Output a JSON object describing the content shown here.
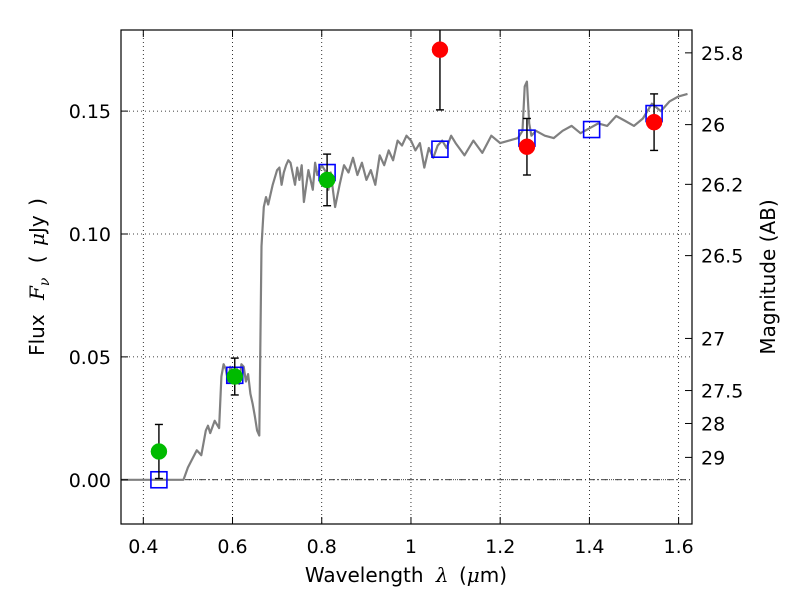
{
  "chart_data": {
    "type": "scatter",
    "xlabel": {
      "text": "Wavelength",
      "symbol": "λ",
      "unit_open": "(",
      "unit_mu": "μ",
      "unit_rest": "m)"
    },
    "ylabel": {
      "text": "Flux",
      "symbol": "F",
      "subscript": "ν",
      "unit_open": "(",
      "unit_mu": "μ",
      "unit_rest": "Jy",
      "unit_close": ")"
    },
    "y2label": "Magnitude (AB)",
    "xlim": [
      0.35,
      1.63
    ],
    "ylim": [
      -0.018,
      0.183
    ],
    "xticks": [
      {
        "value": 0.4,
        "label": "0.4"
      },
      {
        "value": 0.6,
        "label": "0.6"
      },
      {
        "value": 0.8,
        "label": "0.8"
      },
      {
        "value": 1.0,
        "label": "1"
      },
      {
        "value": 1.2,
        "label": "1.2"
      },
      {
        "value": 1.4,
        "label": "1.4"
      },
      {
        "value": 1.6,
        "label": "1.6"
      }
    ],
    "yticks": [
      {
        "value": 0.0,
        "label": "0.00"
      },
      {
        "value": 0.05,
        "label": "0.05"
      },
      {
        "value": 0.1,
        "label": "0.10"
      },
      {
        "value": 0.15,
        "label": "0.15"
      }
    ],
    "y2ticks": [
      {
        "label": "25.8",
        "flux": 0.1737
      },
      {
        "label": "26",
        "flux": 0.1445
      },
      {
        "label": "26.2",
        "flux": 0.1202
      },
      {
        "label": "26.5",
        "flux": 0.0912
      },
      {
        "label": "27",
        "flux": 0.0575
      },
      {
        "label": "27.5",
        "flux": 0.0363
      },
      {
        "label": "28",
        "flux": 0.0229
      },
      {
        "label": "29",
        "flux": 0.0091
      }
    ],
    "grid": true,
    "zero_line": 0.0,
    "colors": {
      "template": "#808080",
      "model": "#0000ff",
      "green": "#00bb00",
      "red": "#ff0000",
      "grid": "#000000"
    },
    "series": [
      {
        "kind": "line",
        "x": [
          0.35,
          0.49,
          0.5,
          0.52,
          0.53,
          0.54,
          0.545,
          0.55,
          0.56,
          0.57,
          0.575,
          0.58,
          0.585,
          0.59,
          0.595,
          0.6,
          0.605,
          0.61,
          0.615,
          0.62,
          0.625,
          0.63,
          0.635,
          0.64,
          0.645,
          0.65,
          0.655,
          0.66,
          0.665,
          0.67,
          0.675,
          0.68,
          0.69,
          0.7,
          0.705,
          0.71,
          0.715,
          0.72,
          0.725,
          0.73,
          0.74,
          0.745,
          0.75,
          0.755,
          0.76,
          0.77,
          0.78,
          0.785,
          0.79,
          0.8,
          0.81,
          0.815,
          0.82,
          0.83,
          0.84,
          0.85,
          0.86,
          0.87,
          0.88,
          0.89,
          0.9,
          0.91,
          0.92,
          0.93,
          0.94,
          0.95,
          0.96,
          0.97,
          0.98,
          0.99,
          1.0,
          1.01,
          1.02,
          1.03,
          1.04,
          1.05,
          1.06,
          1.07,
          1.08,
          1.09,
          1.1,
          1.12,
          1.14,
          1.16,
          1.18,
          1.2,
          1.22,
          1.24,
          1.25,
          1.255,
          1.26,
          1.265,
          1.27,
          1.28,
          1.3,
          1.32,
          1.34,
          1.36,
          1.38,
          1.4,
          1.42,
          1.44,
          1.46,
          1.48,
          1.5,
          1.52,
          1.54,
          1.56,
          1.58,
          1.6,
          1.62
        ],
        "y": [
          0.0,
          0.0,
          0.005,
          0.012,
          0.01,
          0.02,
          0.022,
          0.019,
          0.024,
          0.021,
          0.042,
          0.047,
          0.045,
          0.04,
          0.046,
          0.044,
          0.042,
          0.045,
          0.039,
          0.047,
          0.046,
          0.04,
          0.043,
          0.035,
          0.031,
          0.026,
          0.02,
          0.018,
          0.095,
          0.111,
          0.115,
          0.112,
          0.12,
          0.126,
          0.127,
          0.12,
          0.125,
          0.128,
          0.13,
          0.129,
          0.12,
          0.127,
          0.122,
          0.128,
          0.113,
          0.126,
          0.118,
          0.129,
          0.124,
          0.128,
          0.125,
          0.118,
          0.125,
          0.111,
          0.12,
          0.128,
          0.125,
          0.131,
          0.124,
          0.129,
          0.122,
          0.126,
          0.12,
          0.132,
          0.128,
          0.134,
          0.13,
          0.138,
          0.136,
          0.14,
          0.138,
          0.134,
          0.137,
          0.127,
          0.135,
          0.131,
          0.136,
          0.138,
          0.135,
          0.14,
          0.137,
          0.132,
          0.138,
          0.133,
          0.14,
          0.137,
          0.138,
          0.139,
          0.142,
          0.16,
          0.162,
          0.145,
          0.14,
          0.142,
          0.14,
          0.139,
          0.142,
          0.144,
          0.141,
          0.143,
          0.145,
          0.144,
          0.148,
          0.146,
          0.144,
          0.147,
          0.153,
          0.15,
          0.154,
          0.156,
          0.157
        ]
      },
      {
        "kind": "open-square",
        "x": [
          0.435,
          0.605,
          0.812,
          1.065,
          1.26,
          1.405,
          1.545
        ],
        "y": [
          0.0,
          0.0425,
          0.125,
          0.1345,
          0.139,
          0.1425,
          0.149
        ]
      },
      {
        "kind": "filled-circle",
        "color": "green",
        "x": [
          0.435,
          0.605,
          0.812
        ],
        "y": [
          0.0115,
          0.042,
          0.122
        ],
        "yerr": [
          0.011,
          0.0075,
          0.0105
        ]
      },
      {
        "kind": "filled-circle",
        "color": "red",
        "x": [
          1.065,
          1.26,
          1.545
        ],
        "y": [
          0.175,
          0.1355,
          0.1455
        ],
        "yerr": [
          0.0245,
          0.0115,
          0.0115
        ]
      }
    ]
  }
}
